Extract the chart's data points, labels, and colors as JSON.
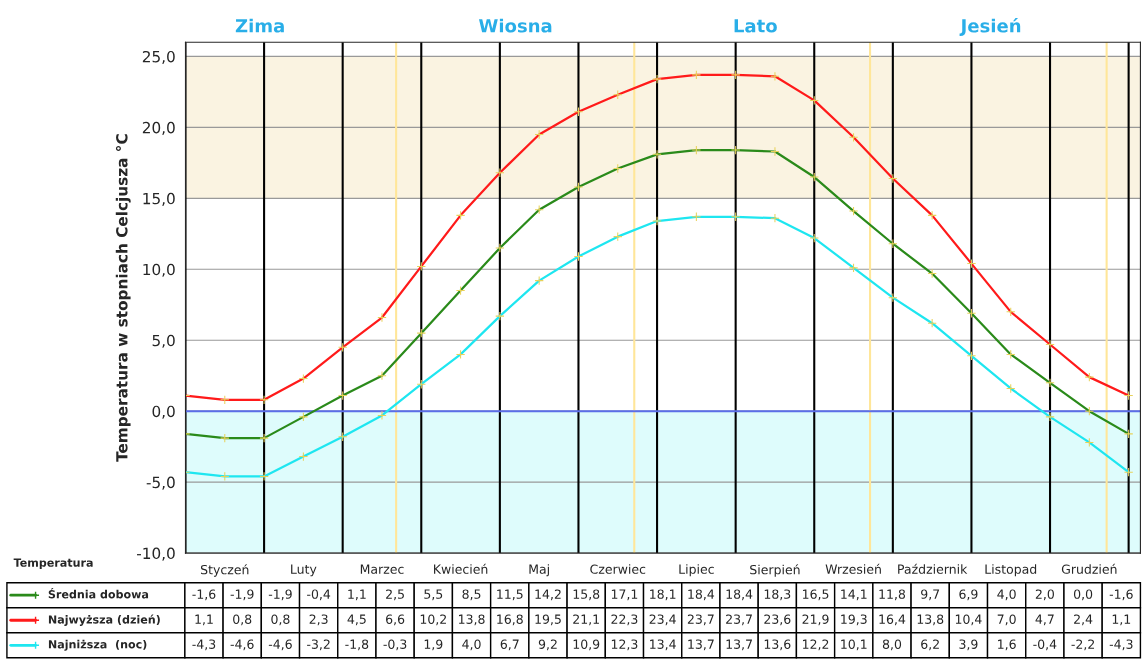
{
  "chart_data": {
    "type": "line",
    "ylabel": "Temperatura w stopniach Celcjusza °C",
    "categories": [
      null,
      "Styczeń",
      null,
      "Luty",
      null,
      "Marzec",
      null,
      "Kwiecień",
      null,
      "Maj",
      null,
      "Czerwiec",
      null,
      "Lipiec",
      null,
      "Sierpień",
      null,
      "Wrzesień",
      null,
      "Październik",
      null,
      "Listopad",
      null,
      "Grudzień",
      null
    ],
    "series": [
      {
        "name": "Średnia dobowa",
        "color": "#2a8a1a",
        "values": [
          -1.6,
          -1.9,
          -1.9,
          -0.4,
          1.1,
          2.5,
          5.5,
          8.5,
          11.5,
          14.2,
          15.8,
          17.1,
          18.1,
          18.4,
          18.4,
          18.3,
          16.5,
          14.1,
          11.8,
          9.7,
          6.9,
          4.0,
          2.0,
          0.0,
          -1.6
        ],
        "value_labels": [
          "-1,6",
          "-1,9",
          "-1,9",
          "-0,4",
          "1,1",
          "2,5",
          "5,5",
          "8,5",
          "11,5",
          "14,2",
          "15,8",
          "17,1",
          "18,1",
          "18,4",
          "18,4",
          "18,3",
          "16,5",
          "14,1",
          "11,8",
          "9,7",
          "6,9",
          "4,0",
          "2,0",
          "0,0",
          "-1,6"
        ]
      },
      {
        "name": "Najwyższa (dzień)",
        "color": "#ff1a1a",
        "values": [
          1.1,
          0.8,
          0.8,
          2.3,
          4.5,
          6.6,
          10.2,
          13.8,
          16.8,
          19.5,
          21.1,
          22.3,
          23.4,
          23.7,
          23.7,
          23.6,
          21.9,
          19.3,
          16.4,
          13.8,
          10.4,
          7.0,
          4.7,
          2.4,
          1.1
        ],
        "value_labels": [
          "1,1",
          "0,8",
          "0,8",
          "2,3",
          "4,5",
          "6,6",
          "10,2",
          "13,8",
          "16,8",
          "19,5",
          "21,1",
          "22,3",
          "23,4",
          "23,7",
          "23,7",
          "23,6",
          "21,9",
          "19,3",
          "16,4",
          "13,8",
          "10,4",
          "7,0",
          "4,7",
          "2,4",
          "1,1"
        ]
      },
      {
        "name": "Najniższa  (noc)",
        "color": "#1ee6f0",
        "values": [
          -4.3,
          -4.6,
          -4.6,
          -3.2,
          -1.8,
          -0.3,
          1.9,
          4.0,
          6.7,
          9.2,
          10.9,
          12.3,
          13.4,
          13.7,
          13.7,
          13.6,
          12.2,
          10.1,
          8.0,
          6.2,
          3.9,
          1.6,
          -0.4,
          -2.2,
          -4.3
        ],
        "value_labels": [
          "-4,3",
          "-4,6",
          "-4,6",
          "-3,2",
          "-1,8",
          "-0,3",
          "1,9",
          "4,0",
          "6,7",
          "9,2",
          "10,9",
          "12,3",
          "13,4",
          "13,7",
          "13,7",
          "13,6",
          "12,2",
          "10,1",
          "8,0",
          "6,2",
          "3,9",
          "1,6",
          "-0,4",
          "-2,2",
          "-4,3"
        ]
      }
    ],
    "ylim": [
      -10,
      26
    ],
    "yticks": [
      {
        "value": -10,
        "label": "-10,0"
      },
      {
        "value": -5,
        "label": "-5,0"
      },
      {
        "value": 0,
        "label": "0,0"
      },
      {
        "value": 5,
        "label": "5,0"
      },
      {
        "value": 10,
        "label": "10,0"
      },
      {
        "value": 15,
        "label": "15,0"
      },
      {
        "value": 20,
        "label": "20,0"
      },
      {
        "value": 25,
        "label": "25,0"
      }
    ],
    "bands": [
      {
        "axis": "y",
        "from": 15,
        "to": 25,
        "color": "#faf3e1"
      },
      {
        "axis": "y",
        "from": -10,
        "to": 0,
        "color": "#defcfc"
      }
    ],
    "ref_lines": [
      {
        "axis": "y",
        "value": 0,
        "color": "#5b6ee8"
      }
    ],
    "annotations": [
      "Temperatura",
      "Zima",
      "Wiosna",
      "Lato",
      "Jesień"
    ],
    "grid": true,
    "marker": "cross",
    "line_style": "solid",
    "legend": "bottom"
  }
}
